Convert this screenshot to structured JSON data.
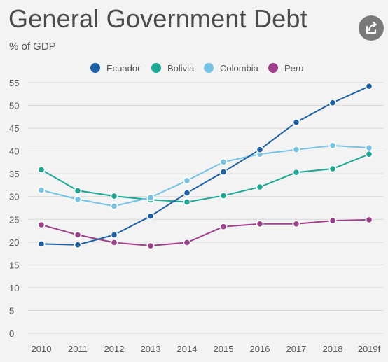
{
  "header": {
    "title": "General Government Debt",
    "subtitle": "% of GDP"
  },
  "share": {
    "icon": "share-icon"
  },
  "colors": {
    "Ecuador": "#1a5fa8",
    "Bolivia": "#1aa894",
    "Colombia": "#74c3e6",
    "Peru": "#9e3f8c",
    "grid": "#d8d8d8",
    "text": "#555555",
    "background": "#f3f3f3"
  },
  "chart_data": {
    "type": "line",
    "title": "General Government Debt",
    "subtitle": "% of GDP",
    "xlabel": "",
    "ylabel": "",
    "categories": [
      "2010",
      "2011",
      "2012",
      "2013",
      "2014",
      "2015",
      "2016",
      "2017",
      "2018",
      "2019f"
    ],
    "ylim": [
      0,
      55
    ],
    "yticks": [
      0,
      5,
      10,
      15,
      20,
      25,
      30,
      35,
      40,
      45,
      50,
      55
    ],
    "grid": true,
    "legend_position": "top-center",
    "series": [
      {
        "name": "Ecuador",
        "values": [
          19.6,
          19.4,
          21.6,
          25.7,
          30.8,
          35.4,
          40.3,
          46.3,
          50.6,
          54.2
        ]
      },
      {
        "name": "Bolivia",
        "values": [
          35.9,
          31.3,
          30.1,
          29.3,
          28.8,
          30.2,
          32.1,
          35.3,
          36.1,
          39.3
        ]
      },
      {
        "name": "Colombia",
        "values": [
          31.4,
          29.4,
          27.9,
          29.8,
          33.5,
          37.6,
          39.3,
          40.3,
          41.2,
          40.7
        ]
      },
      {
        "name": "Peru",
        "values": [
          23.8,
          21.6,
          19.9,
          19.2,
          19.9,
          23.4,
          24.0,
          24.0,
          24.7,
          24.9
        ]
      }
    ]
  }
}
